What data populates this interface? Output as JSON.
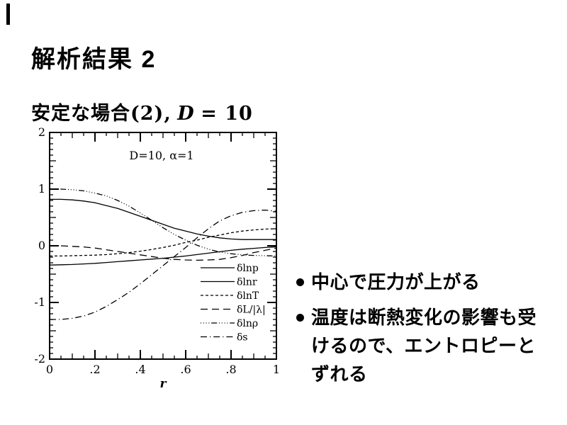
{
  "slide": {
    "title": "解析結果 2",
    "subtitle": {
      "jp": "安定な場合",
      "paren": "(2),",
      "d": "D",
      "eq": "= 10"
    },
    "bullets": [
      "中心で圧力が上がる",
      "温度は断熱変化の影響も受けるので、エントロピーとずれる"
    ]
  },
  "chart_data": {
    "type": "line",
    "title": "D=10,  α=1",
    "xlabel": "r",
    "ylabel": "",
    "xlim": [
      0,
      1
    ],
    "ylim": [
      -2,
      2
    ],
    "grid": false,
    "legend_position": "lower-right",
    "x_ticks": [
      {
        "v": 0,
        "label": "0"
      },
      {
        "v": 0.2,
        "label": ".2"
      },
      {
        "v": 0.4,
        "label": ".4"
      },
      {
        "v": 0.6,
        "label": ".6"
      },
      {
        "v": 0.8,
        "label": ".8"
      },
      {
        "v": 1,
        "label": "1"
      }
    ],
    "y_ticks": [
      {
        "v": 2,
        "label": "2"
      },
      {
        "v": 1,
        "label": "1"
      },
      {
        "v": 0,
        "label": "0"
      },
      {
        "v": -1,
        "label": "-1"
      },
      {
        "v": -2,
        "label": "-2"
      }
    ],
    "x": [
      0,
      0.05,
      0.1,
      0.15,
      0.2,
      0.25,
      0.3,
      0.35,
      0.4,
      0.45,
      0.5,
      0.55,
      0.6,
      0.65,
      0.7,
      0.75,
      0.8,
      0.85,
      0.9,
      0.95,
      1
    ],
    "series": [
      {
        "name": "δlnp",
        "dash": "solid",
        "values": [
          0.82,
          0.82,
          0.81,
          0.79,
          0.76,
          0.71,
          0.66,
          0.59,
          0.52,
          0.45,
          0.38,
          0.31,
          0.26,
          0.21,
          0.17,
          0.14,
          0.12,
          0.11,
          0.11,
          0.11,
          0.11
        ]
      },
      {
        "name": "δlnr",
        "dash": "solid",
        "values": [
          -0.34,
          -0.335,
          -0.33,
          -0.32,
          -0.31,
          -0.295,
          -0.28,
          -0.265,
          -0.25,
          -0.235,
          -0.22,
          -0.2,
          -0.18,
          -0.155,
          -0.13,
          -0.105,
          -0.08,
          -0.06,
          -0.045,
          -0.03,
          -0.02
        ]
      },
      {
        "name": "δlnT",
        "dash": "short-dash",
        "values": [
          -0.18,
          -0.18,
          -0.175,
          -0.17,
          -0.165,
          -0.155,
          -0.14,
          -0.12,
          -0.095,
          -0.065,
          -0.03,
          0.01,
          0.06,
          0.1,
          0.15,
          0.19,
          0.23,
          0.26,
          0.28,
          0.295,
          0.3
        ]
      },
      {
        "name": "δL/|λ|",
        "dash": "long-dash",
        "values": [
          0,
          0,
          -0.01,
          -0.02,
          -0.04,
          -0.07,
          -0.1,
          -0.13,
          -0.16,
          -0.19,
          -0.22,
          -0.24,
          -0.25,
          -0.255,
          -0.25,
          -0.24,
          -0.21,
          -0.17,
          -0.12,
          -0.08,
          -0.04
        ]
      },
      {
        "name": "δlnρ",
        "dash": "dot-dot-dot-dash",
        "values": [
          1,
          1,
          0.99,
          0.97,
          0.93,
          0.88,
          0.8,
          0.7,
          0.58,
          0.45,
          0.32,
          0.2,
          0.1,
          0.01,
          -0.06,
          -0.11,
          -0.14,
          -0.16,
          -0.17,
          -0.175,
          -0.18
        ]
      },
      {
        "name": "δs",
        "dash": "dash-dot",
        "values": [
          -1.3,
          -1.3,
          -1.28,
          -1.24,
          -1.17,
          -1.07,
          -0.95,
          -0.82,
          -0.67,
          -0.51,
          -0.35,
          -0.19,
          -0.03,
          0.14,
          0.3,
          0.44,
          0.53,
          0.59,
          0.62,
          0.63,
          0.61
        ]
      }
    ],
    "colors": {
      "stroke": "#000000",
      "background": "#ffffff"
    }
  }
}
